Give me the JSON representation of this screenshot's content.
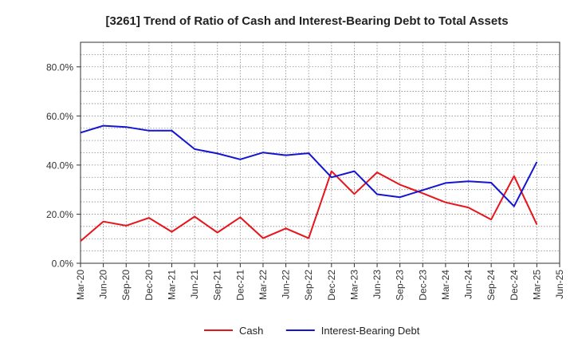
{
  "chart_data": {
    "type": "line",
    "title": "[3261]  Trend of Ratio of Cash and Interest-Bearing Debt to Total Assets",
    "xlabel": "",
    "ylabel": "",
    "ylim": [
      0,
      90
    ],
    "y_ticks": [
      0,
      20,
      40,
      60,
      80
    ],
    "y_tick_labels": [
      "0.0%",
      "20.0%",
      "40.0%",
      "60.0%",
      "80.0%"
    ],
    "categories": [
      "Mar-20",
      "Jun-20",
      "Sep-20",
      "Dec-20",
      "Mar-21",
      "Jun-21",
      "Sep-21",
      "Dec-21",
      "Mar-22",
      "Jun-22",
      "Sep-22",
      "Dec-22",
      "Mar-23",
      "Jun-23",
      "Sep-23",
      "Dec-23",
      "Mar-24",
      "Jun-24",
      "Sep-24",
      "Dec-24",
      "Mar-25",
      "Jun-25"
    ],
    "grid": true,
    "legend_position": "bottom-center",
    "series": [
      {
        "name": "Cash",
        "color": "#e8141b",
        "values": [
          9.0,
          17.0,
          15.3,
          18.5,
          12.8,
          19.0,
          12.5,
          18.7,
          10.2,
          14.2,
          10.2,
          37.5,
          28.2,
          37.0,
          32.0,
          28.5,
          24.8,
          22.7,
          17.8,
          35.5,
          15.8,
          null
        ]
      },
      {
        "name": "Interest-Bearing Debt",
        "color": "#1414d2",
        "values": [
          53.2,
          56.0,
          55.5,
          54.0,
          54.0,
          46.5,
          44.7,
          42.3,
          45.1,
          44.0,
          44.8,
          35.0,
          37.5,
          28.1,
          26.9,
          29.8,
          32.7,
          33.4,
          32.8,
          23.2,
          41.3,
          null
        ]
      }
    ]
  }
}
